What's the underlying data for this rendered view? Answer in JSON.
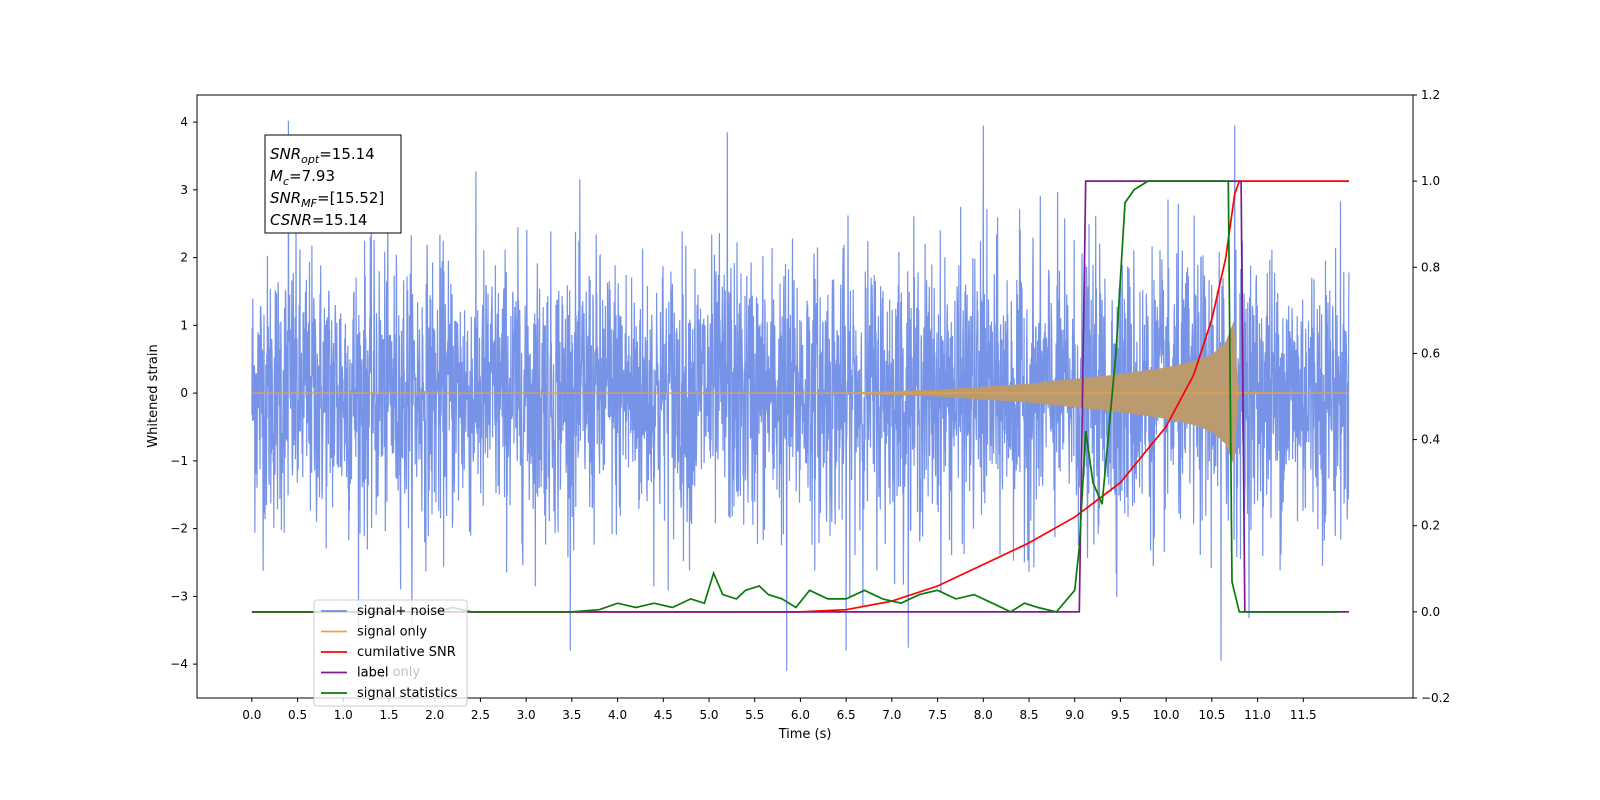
{
  "chart_data": {
    "type": "line",
    "title": "",
    "xlabel": "Time (s)",
    "ylabel": "Whitened strain",
    "xlim": [
      -0.6,
      12.7
    ],
    "ylim": [
      -4.5,
      4.4
    ],
    "y2lim": [
      -0.2,
      1.2
    ],
    "x_ticks": [
      0.0,
      0.5,
      1.0,
      1.5,
      2.0,
      2.5,
      3.0,
      3.5,
      4.0,
      4.5,
      5.0,
      5.5,
      6.0,
      6.5,
      7.0,
      7.5,
      8.0,
      8.5,
      9.0,
      9.5,
      10.0,
      10.5,
      11.0,
      11.5
    ],
    "x_tick_labels": [
      "0.0",
      "0.5",
      "1.0",
      "1.5",
      "2.0",
      "2.5",
      "3.0",
      "3.5",
      "4.0",
      "4.5",
      "5.0",
      "5.5",
      "6.0",
      "6.5",
      "7.0",
      "7.5",
      "8.0",
      "8.5",
      "9.0",
      "9.5",
      "10.0",
      "10.5",
      "11.0",
      "11.5"
    ],
    "y_ticks": [
      -4,
      -3,
      -2,
      -1,
      0,
      1,
      2,
      3,
      4
    ],
    "y_tick_labels": [
      "−4",
      "−3",
      "−2",
      "−1",
      "0",
      "1",
      "2",
      "3",
      "4"
    ],
    "y2_ticks": [
      -0.2,
      0.0,
      0.2,
      0.4,
      0.6,
      0.8,
      1.0,
      1.2
    ],
    "y2_tick_labels": [
      "−0.2",
      "0.0",
      "0.2",
      "0.4",
      "0.6",
      "0.8",
      "1.0",
      "1.2"
    ],
    "grid": false,
    "legend_position": "lower-left",
    "annotation": {
      "lines": [
        {
          "base": "SNR",
          "sub": "opt",
          "value": "=15.14"
        },
        {
          "base": "M",
          "sub": "c",
          "value": "=7.93"
        },
        {
          "base": "SNR",
          "sub": "MF",
          "value": "=[15.52]"
        },
        {
          "base": "CSNR",
          "sub": "",
          "value": "=15.14"
        }
      ]
    },
    "noise": {
      "name": "signal+ noise",
      "color": "#6f8de6",
      "x_range": [
        0.0,
        12.0
      ],
      "sigma": 1.0,
      "peaks": [
        {
          "x": 0.4,
          "y": 4.02
        },
        {
          "x": 8.0,
          "y": 3.95
        },
        {
          "x": 10.75,
          "y": 3.95
        },
        {
          "x": 10.6,
          "y": -3.95
        },
        {
          "x": 5.85,
          "y": -4.1
        },
        {
          "x": 6.5,
          "y": -3.8
        },
        {
          "x": 5.2,
          "y": 3.85
        }
      ]
    },
    "signal": {
      "name": "signal only",
      "color": "#f0a040",
      "fill_color": "#bb9a70",
      "envelope": {
        "x": [
          0.0,
          6.5,
          7.5,
          8.5,
          9.0,
          9.5,
          10.0,
          10.3,
          10.5,
          10.65,
          10.75,
          10.78,
          10.8,
          12.0
        ],
        "y": [
          0.0,
          0.01,
          0.05,
          0.14,
          0.21,
          0.28,
          0.38,
          0.47,
          0.57,
          0.75,
          1.1,
          0.2,
          0.02,
          0.0
        ]
      }
    },
    "series": [
      {
        "name": "cumilative SNR",
        "color": "#ff0000",
        "axis": "right",
        "x": [
          0.0,
          6.0,
          6.5,
          7.0,
          7.5,
          8.0,
          8.5,
          9.0,
          9.5,
          10.0,
          10.3,
          10.5,
          10.65,
          10.75,
          10.8,
          12.0
        ],
        "y": [
          0.0,
          0.0,
          0.005,
          0.025,
          0.06,
          0.11,
          0.16,
          0.22,
          0.3,
          0.43,
          0.55,
          0.68,
          0.82,
          0.97,
          1.0,
          1.0
        ]
      },
      {
        "name": "label",
        "color": "#7e1a8c",
        "axis": "right",
        "x": [
          0.0,
          9.05,
          9.12,
          10.82,
          10.86,
          12.0
        ],
        "y": [
          0.0,
          0.0,
          1.0,
          1.0,
          0.0,
          0.0
        ]
      },
      {
        "name": "label only",
        "color": "#7e1a8c",
        "axis": "right",
        "x": [],
        "y": []
      },
      {
        "name": "signal statistics",
        "color": "#0a7a0a",
        "axis": "right",
        "x": [
          0.0,
          2.0,
          2.2,
          2.4,
          3.0,
          3.5,
          3.8,
          4.0,
          4.2,
          4.4,
          4.6,
          4.8,
          4.95,
          5.05,
          5.15,
          5.3,
          5.4,
          5.55,
          5.65,
          5.8,
          5.95,
          6.1,
          6.3,
          6.5,
          6.7,
          6.9,
          7.1,
          7.3,
          7.5,
          7.7,
          7.9,
          8.1,
          8.3,
          8.45,
          8.6,
          8.8,
          9.0,
          9.05,
          9.12,
          9.2,
          9.3,
          9.45,
          9.55,
          9.65,
          9.8,
          10.0,
          10.3,
          10.55,
          10.68,
          10.72,
          10.8,
          11.0,
          11.9
        ],
        "y": [
          0.0,
          0.0,
          0.01,
          0.0,
          0.0,
          0.0,
          0.005,
          0.02,
          0.01,
          0.02,
          0.01,
          0.03,
          0.02,
          0.09,
          0.04,
          0.03,
          0.05,
          0.06,
          0.04,
          0.03,
          0.01,
          0.05,
          0.03,
          0.03,
          0.05,
          0.03,
          0.02,
          0.04,
          0.05,
          0.03,
          0.04,
          0.02,
          0.0,
          0.02,
          0.01,
          0.0,
          0.05,
          0.15,
          0.42,
          0.3,
          0.25,
          0.6,
          0.95,
          0.98,
          1.0,
          1.0,
          1.0,
          1.0,
          1.0,
          0.07,
          0.0,
          0.0,
          0.0
        ]
      }
    ]
  },
  "legend": [
    {
      "label": "signal+ noise",
      "color": "#6f8de6"
    },
    {
      "label": "signal only",
      "color": "#f0a040"
    },
    {
      "label": "cumilative SNR",
      "color": "#ff0000"
    },
    {
      "label": "label",
      "color": "#7e1a8c"
    },
    {
      "label": "signal statistics",
      "color": "#0a7a0a"
    }
  ],
  "legend_hidden_label": "label only"
}
